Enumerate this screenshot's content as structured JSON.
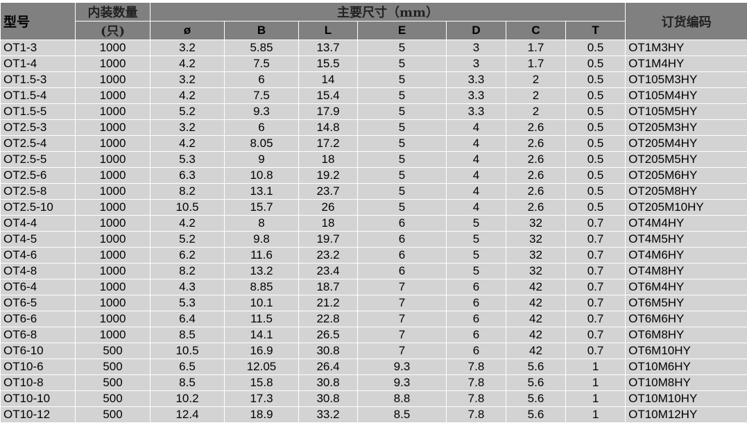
{
  "header": {
    "model": "型号",
    "qty_top": "内装数量",
    "qty_unit": "(只)",
    "dims": "主要尺寸（mm）",
    "dim_cols": [
      "ø",
      "B",
      "L",
      "E",
      "D",
      "C",
      "T"
    ],
    "order_code": "订货编码"
  },
  "rows": [
    [
      "OT1-3",
      "1000",
      "3.2",
      "5.85",
      "13.7",
      "5",
      "3",
      "1.7",
      "0.5",
      "OT1M3HY"
    ],
    [
      "OT1-4",
      "1000",
      "4.2",
      "7.5",
      "15.5",
      "5",
      "3",
      "1.7",
      "0.5",
      "OT1M4HY"
    ],
    [
      "OT1.5-3",
      "1000",
      "3.2",
      "6",
      "14",
      "5",
      "3.3",
      "2",
      "0.5",
      "OT105M3HY"
    ],
    [
      "OT1.5-4",
      "1000",
      "4.2",
      "7.5",
      "15.4",
      "5",
      "3.3",
      "2",
      "0.5",
      "OT105M4HY"
    ],
    [
      "OT1.5-5",
      "1000",
      "5.2",
      "9.3",
      "17.9",
      "5",
      "3.3",
      "2",
      "0.5",
      "OT105M5HY"
    ],
    [
      "OT2.5-3",
      "1000",
      "3.2",
      "6",
      "14.8",
      "5",
      "4",
      "2.6",
      "0.5",
      "OT205M3HY"
    ],
    [
      "OT2.5-4",
      "1000",
      "4.2",
      "8.05",
      "17.2",
      "5",
      "4",
      "2.6",
      "0.5",
      "OT205M4HY"
    ],
    [
      "OT2.5-5",
      "1000",
      "5.3",
      "9",
      "18",
      "5",
      "4",
      "2.6",
      "0.5",
      "OT205M5HY"
    ],
    [
      "OT2.5-6",
      "1000",
      "6.3",
      "10.8",
      "19.2",
      "5",
      "4",
      "2.6",
      "0.5",
      "OT205M6HY"
    ],
    [
      "OT2.5-8",
      "1000",
      "8.2",
      "13.1",
      "23.7",
      "5",
      "4",
      "2.6",
      "0.5",
      "OT205M8HY"
    ],
    [
      "OT2.5-10",
      "1000",
      "10.5",
      "15.7",
      "26",
      "5",
      "4",
      "2.6",
      "0.5",
      "OT205M10HY"
    ],
    [
      "OT4-4",
      "1000",
      "4.2",
      "8",
      "18",
      "6",
      "5",
      "32",
      "0.7",
      "OT4M4HY"
    ],
    [
      "OT4-5",
      "1000",
      "5.2",
      "9.8",
      "19.7",
      "6",
      "5",
      "32",
      "0.7",
      "OT4M5HY"
    ],
    [
      "OT4-6",
      "1000",
      "6.2",
      "11.6",
      "23.2",
      "6",
      "5",
      "32",
      "0.7",
      "OT4M6HY"
    ],
    [
      "OT4-8",
      "1000",
      "8.2",
      "13.2",
      "23.4",
      "6",
      "5",
      "32",
      "0.7",
      "OT4M8HY"
    ],
    [
      "OT6-4",
      "1000",
      "4.3",
      "8.85",
      "18.7",
      "7",
      "6",
      "42",
      "0.7",
      "OT6M4HY"
    ],
    [
      "OT6-5",
      "1000",
      "5.3",
      "10.1",
      "21.2",
      "7",
      "6",
      "42",
      "0.7",
      "OT6M5HY"
    ],
    [
      "OT6-6",
      "1000",
      "6.4",
      "11.5",
      "22.8",
      "7",
      "6",
      "42",
      "0.7",
      "OT6M6HY"
    ],
    [
      "OT6-8",
      "1000",
      "8.5",
      "14.1",
      "26.5",
      "7",
      "6",
      "42",
      "0.7",
      "OT6M8HY"
    ],
    [
      "OT6-10",
      "500",
      "10.5",
      "16.9",
      "30.8",
      "7",
      "6",
      "42",
      "0.7",
      "OT6M10HY"
    ],
    [
      "OT10-6",
      "500",
      "6.5",
      "12.05",
      "26.4",
      "9.3",
      "7.8",
      "5.6",
      "1",
      "OT10M6HY"
    ],
    [
      "OT10-8",
      "500",
      "8.5",
      "15.8",
      "30.8",
      "9.3",
      "7.8",
      "5.6",
      "1",
      "OT10M8HY"
    ],
    [
      "OT10-10",
      "500",
      "10.2",
      "17.3",
      "30.8",
      "8.8",
      "7.8",
      "5.6",
      "1",
      "OT10M10HY"
    ],
    [
      "OT10-12",
      "500",
      "12.4",
      "18.9",
      "33.2",
      "8.5",
      "7.8",
      "5.6",
      "1",
      "OT10M12HY"
    ]
  ]
}
